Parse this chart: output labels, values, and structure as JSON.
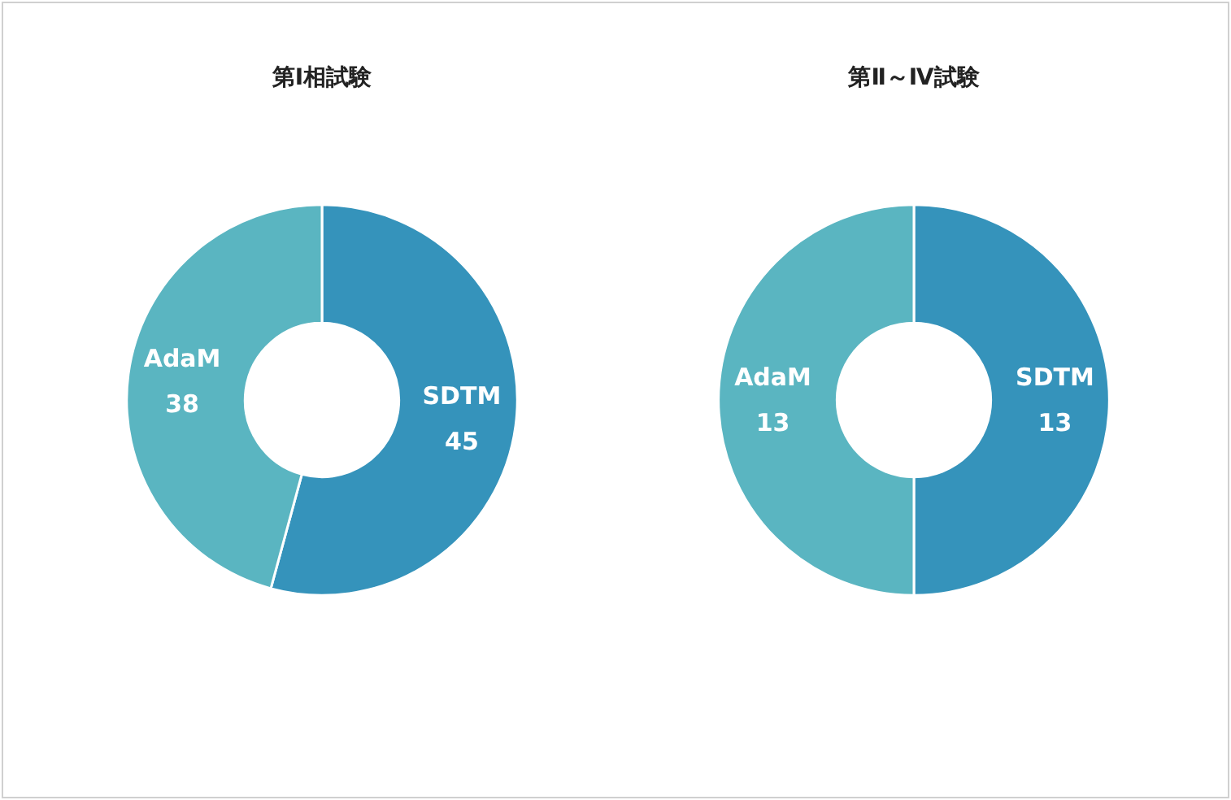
{
  "chart_data": [
    {
      "type": "donut",
      "title": "第Ⅰ相試験",
      "categories": [
        "SDTM",
        "AdaM"
      ],
      "values": [
        45,
        38
      ],
      "colors": [
        "#3593bb",
        "#5ab5c1"
      ],
      "data_labels": true,
      "legend": false
    },
    {
      "type": "donut",
      "title": "第Ⅱ～Ⅳ試験",
      "categories": [
        "SDTM",
        "AdaM"
      ],
      "values": [
        13,
        13
      ],
      "colors": [
        "#3593bb",
        "#5ab5c1"
      ],
      "data_labels": true,
      "legend": false
    }
  ]
}
